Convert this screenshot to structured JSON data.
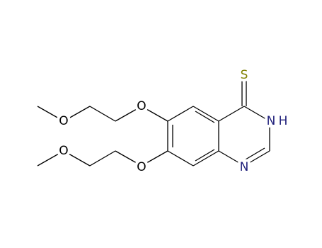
{
  "atoms": [
    {
      "label": "S"
    },
    {
      "label": "N"
    },
    {
      "label": "H"
    },
    {
      "label": "N"
    },
    {
      "label": "O"
    },
    {
      "label": "O"
    },
    {
      "label": "O"
    },
    {
      "label": "O"
    }
  ]
}
